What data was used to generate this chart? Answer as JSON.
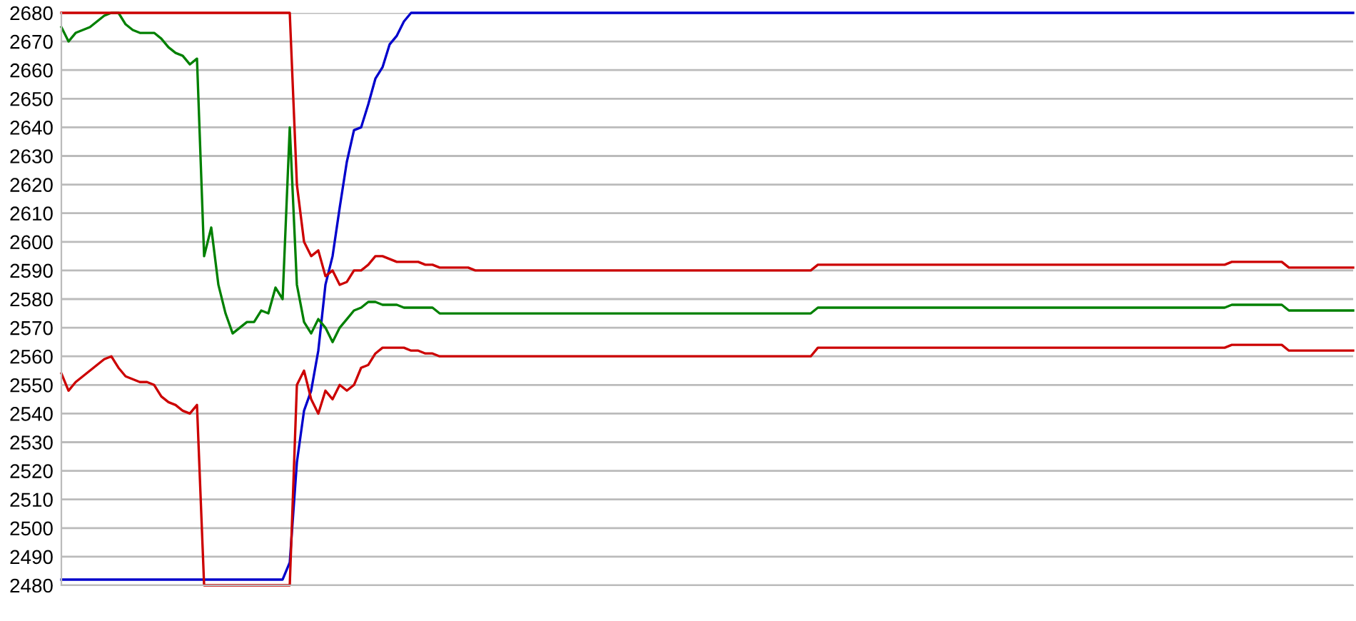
{
  "chart_data": {
    "type": "line",
    "categories": [
      null,
      null,
      null,
      null,
      null,
      null,
      null,
      null,
      null,
      null,
      null,
      null,
      null,
      null,
      null,
      null,
      null,
      null,
      null,
      null,
      null,
      null,
      null,
      null,
      null,
      null,
      null,
      null,
      null,
      null,
      null,
      null,
      null,
      null,
      null,
      null,
      null,
      null,
      null,
      null,
      null,
      null,
      null,
      null,
      null,
      null,
      null,
      null,
      null,
      null,
      null,
      null,
      null,
      null,
      null,
      null,
      null,
      null,
      null,
      null,
      null,
      null,
      null,
      null,
      null,
      null,
      null,
      null,
      null,
      null,
      null,
      null,
      null,
      null,
      null,
      null,
      null,
      null,
      null,
      null,
      null,
      null,
      null,
      null,
      null,
      null,
      null,
      null,
      null,
      null,
      null,
      null,
      null,
      null,
      null,
      null,
      null,
      null,
      null,
      null,
      null,
      null,
      null,
      null,
      null,
      null,
      null,
      null,
      null,
      null,
      null,
      null,
      null,
      null,
      null,
      null,
      null,
      null,
      null,
      null,
      null,
      null,
      null,
      null,
      null,
      null,
      null,
      null,
      null,
      null,
      null,
      null,
      null,
      null,
      null,
      null,
      null,
      null,
      null,
      null,
      null,
      null,
      null,
      null,
      null,
      null,
      null,
      null,
      null,
      null,
      null,
      null,
      null,
      null,
      null,
      null,
      null,
      null,
      null,
      null,
      null,
      null,
      null,
      null,
      null,
      null,
      null,
      null,
      null,
      null,
      null,
      null,
      null,
      null,
      null,
      null,
      null,
      null,
      null,
      null,
      null,
      null
    ],
    "series": [
      {
        "color": "#0000cc",
        "values": [
          2482,
          2482,
          2482,
          2482,
          2482,
          2482,
          2482,
          2482,
          2482,
          2482,
          2482,
          2482,
          2482,
          2482,
          2482,
          2482,
          2482,
          2482,
          2482,
          2482,
          2482,
          2482,
          2482,
          2482,
          2482,
          2482,
          2482,
          2482,
          2482,
          2482,
          2482,
          2482,
          2488,
          2523,
          2541,
          2548,
          2562,
          2585,
          2595,
          2612,
          2628,
          2639,
          2640,
          2648,
          2657,
          2661,
          2669,
          2672,
          2677,
          2680,
          2680,
          2680,
          2680,
          2680,
          2680,
          2680,
          2680,
          2680,
          2680,
          2680,
          2680,
          2680,
          2680,
          2680,
          2680,
          2680,
          2680,
          2680,
          2680,
          2680,
          2680,
          2680,
          2680,
          2680,
          2680,
          2680,
          2680,
          2680,
          2680,
          2680,
          2680,
          2680,
          2680,
          2680,
          2680,
          2680,
          2680,
          2680,
          2680,
          2680,
          2680,
          2680,
          2680,
          2680,
          2680,
          2680,
          2680,
          2680,
          2680,
          2680,
          2680,
          2680,
          2680,
          2680,
          2680,
          2680,
          2680,
          2680,
          2680,
          2680,
          2680,
          2680,
          2680,
          2680,
          2680,
          2680,
          2680,
          2680,
          2680,
          2680,
          2680,
          2680,
          2680,
          2680,
          2680,
          2680,
          2680,
          2680,
          2680,
          2680,
          2680,
          2680,
          2680,
          2680,
          2680,
          2680,
          2680,
          2680,
          2680,
          2680,
          2680,
          2680,
          2680,
          2680,
          2680,
          2680,
          2680,
          2680,
          2680,
          2680,
          2680,
          2680,
          2680,
          2680,
          2680,
          2680,
          2680,
          2680,
          2680,
          2680,
          2680,
          2680,
          2680,
          2680,
          2680,
          2680,
          2680,
          2680,
          2680,
          2680,
          2680,
          2680,
          2680,
          2680,
          2680,
          2680,
          2680,
          2680,
          2680,
          2680,
          2680,
          2680
        ]
      },
      {
        "color": "#008000",
        "values": [
          2675,
          2670,
          2673,
          2674,
          2675,
          2677,
          2679,
          2680,
          2680,
          2676,
          2674,
          2673,
          2673,
          2673,
          2671,
          2668,
          2666,
          2665,
          2662,
          2664,
          2595,
          2605,
          2585,
          2575,
          2568,
          2570,
          2572,
          2572,
          2576,
          2575,
          2584,
          2580,
          2640,
          2585,
          2572,
          2568,
          2573,
          2570,
          2565,
          2570,
          2573,
          2576,
          2577,
          2579,
          2579,
          2578,
          2578,
          2578,
          2577,
          2577,
          2577,
          2577,
          2577,
          2575,
          2575,
          2575,
          2575,
          2575,
          2575,
          2575,
          2575,
          2575,
          2575,
          2575,
          2575,
          2575,
          2575,
          2575,
          2575,
          2575,
          2575,
          2575,
          2575,
          2575,
          2575,
          2575,
          2575,
          2575,
          2575,
          2575,
          2575,
          2575,
          2575,
          2575,
          2575,
          2575,
          2575,
          2575,
          2575,
          2575,
          2575,
          2575,
          2575,
          2575,
          2575,
          2575,
          2575,
          2575,
          2575,
          2575,
          2575,
          2575,
          2575,
          2575,
          2575,
          2575,
          2577,
          2577,
          2577,
          2577,
          2577,
          2577,
          2577,
          2577,
          2577,
          2577,
          2577,
          2577,
          2577,
          2577,
          2577,
          2577,
          2577,
          2577,
          2577,
          2577,
          2577,
          2577,
          2577,
          2577,
          2577,
          2577,
          2577,
          2577,
          2577,
          2577,
          2577,
          2577,
          2577,
          2577,
          2577,
          2577,
          2577,
          2577,
          2577,
          2577,
          2577,
          2577,
          2577,
          2577,
          2577,
          2577,
          2577,
          2577,
          2577,
          2577,
          2577,
          2577,
          2577,
          2577,
          2577,
          2577,
          2577,
          2577,
          2578,
          2578,
          2578,
          2578,
          2578,
          2578,
          2578,
          2578,
          2576,
          2576,
          2576,
          2576,
          2576,
          2576,
          2576,
          2576,
          2576,
          2576
        ]
      },
      {
        "color": "#cc0000",
        "values": [
          2680,
          2680,
          2680,
          2680,
          2680,
          2680,
          2680,
          2680,
          2680,
          2680,
          2680,
          2680,
          2680,
          2680,
          2680,
          2680,
          2680,
          2680,
          2680,
          2680,
          2680,
          2680,
          2680,
          2680,
          2680,
          2680,
          2680,
          2680,
          2680,
          2680,
          2680,
          2680,
          2680,
          2620,
          2600,
          2595,
          2597,
          2588,
          2590,
          2585,
          2586,
          2590,
          2590,
          2592,
          2595,
          2595,
          2594,
          2593,
          2593,
          2593,
          2593,
          2592,
          2592,
          2591,
          2591,
          2591,
          2591,
          2591,
          2590,
          2590,
          2590,
          2590,
          2590,
          2590,
          2590,
          2590,
          2590,
          2590,
          2590,
          2590,
          2590,
          2590,
          2590,
          2590,
          2590,
          2590,
          2590,
          2590,
          2590,
          2590,
          2590,
          2590,
          2590,
          2590,
          2590,
          2590,
          2590,
          2590,
          2590,
          2590,
          2590,
          2590,
          2590,
          2590,
          2590,
          2590,
          2590,
          2590,
          2590,
          2590,
          2590,
          2590,
          2590,
          2590,
          2590,
          2590,
          2592,
          2592,
          2592,
          2592,
          2592,
          2592,
          2592,
          2592,
          2592,
          2592,
          2592,
          2592,
          2592,
          2592,
          2592,
          2592,
          2592,
          2592,
          2592,
          2592,
          2592,
          2592,
          2592,
          2592,
          2592,
          2592,
          2592,
          2592,
          2592,
          2592,
          2592,
          2592,
          2592,
          2592,
          2592,
          2592,
          2592,
          2592,
          2592,
          2592,
          2592,
          2592,
          2592,
          2592,
          2592,
          2592,
          2592,
          2592,
          2592,
          2592,
          2592,
          2592,
          2592,
          2592,
          2592,
          2592,
          2592,
          2592,
          2593,
          2593,
          2593,
          2593,
          2593,
          2593,
          2593,
          2593,
          2591,
          2591,
          2591,
          2591,
          2591,
          2591,
          2591,
          2591,
          2591,
          2591
        ]
      },
      {
        "color": "#cc0000",
        "values": [
          2554,
          2548,
          2551,
          2553,
          2555,
          2557,
          2559,
          2560,
          2556,
          2553,
          2552,
          2551,
          2551,
          2550,
          2546,
          2544,
          2543,
          2541,
          2540,
          2543,
          2480,
          2480,
          2480,
          2480,
          2480,
          2480,
          2480,
          2480,
          2480,
          2480,
          2480,
          2480,
          2480,
          2550,
          2555,
          2545,
          2540,
          2548,
          2545,
          2550,
          2548,
          2550,
          2556,
          2557,
          2561,
          2563,
          2563,
          2563,
          2563,
          2562,
          2562,
          2561,
          2561,
          2560,
          2560,
          2560,
          2560,
          2560,
          2560,
          2560,
          2560,
          2560,
          2560,
          2560,
          2560,
          2560,
          2560,
          2560,
          2560,
          2560,
          2560,
          2560,
          2560,
          2560,
          2560,
          2560,
          2560,
          2560,
          2560,
          2560,
          2560,
          2560,
          2560,
          2560,
          2560,
          2560,
          2560,
          2560,
          2560,
          2560,
          2560,
          2560,
          2560,
          2560,
          2560,
          2560,
          2560,
          2560,
          2560,
          2560,
          2560,
          2560,
          2560,
          2560,
          2560,
          2560,
          2563,
          2563,
          2563,
          2563,
          2563,
          2563,
          2563,
          2563,
          2563,
          2563,
          2563,
          2563,
          2563,
          2563,
          2563,
          2563,
          2563,
          2563,
          2563,
          2563,
          2563,
          2563,
          2563,
          2563,
          2563,
          2563,
          2563,
          2563,
          2563,
          2563,
          2563,
          2563,
          2563,
          2563,
          2563,
          2563,
          2563,
          2563,
          2563,
          2563,
          2563,
          2563,
          2563,
          2563,
          2563,
          2563,
          2563,
          2563,
          2563,
          2563,
          2563,
          2563,
          2563,
          2563,
          2563,
          2563,
          2563,
          2563,
          2564,
          2564,
          2564,
          2564,
          2564,
          2564,
          2564,
          2564,
          2562,
          2562,
          2562,
          2562,
          2562,
          2562,
          2562,
          2562,
          2562,
          2562
        ]
      }
    ],
    "ylim": [
      2480,
      2680
    ],
    "yticks": [
      2480,
      2490,
      2500,
      2510,
      2520,
      2530,
      2540,
      2550,
      2560,
      2570,
      2580,
      2590,
      2600,
      2610,
      2620,
      2630,
      2640,
      2650,
      2660,
      2670,
      2680
    ],
    "grid": "y",
    "tick_labels": "y",
    "legend": false
  }
}
